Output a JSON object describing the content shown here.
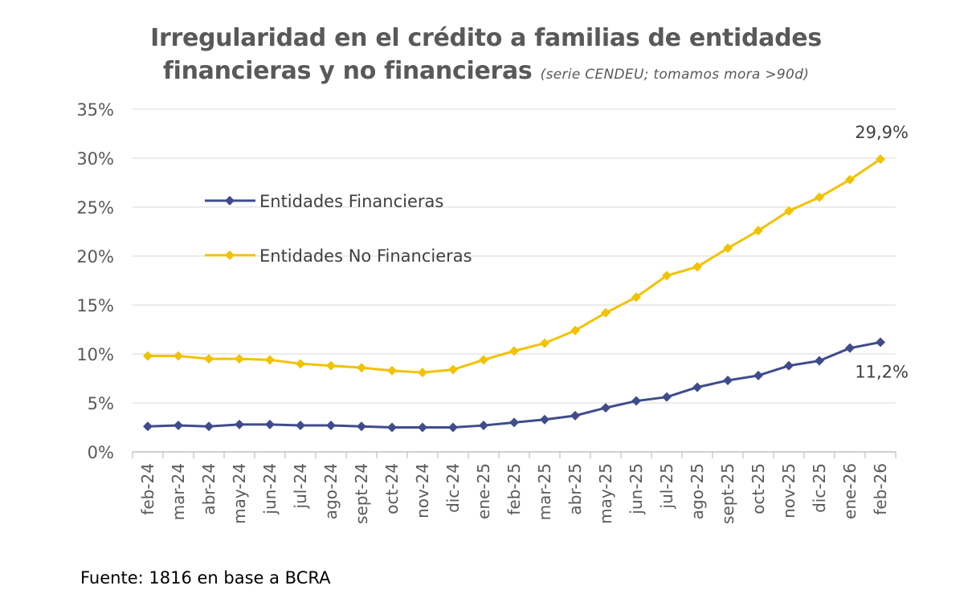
{
  "chart_data": {
    "type": "line",
    "title": "Irregularidad en el crédito a familias de entidades",
    "title_line2": "financieras y no financieras",
    "subtitle": "(serie CENDEU; tomamos mora >90d)",
    "source": "Fuente: 1816 en base a BCRA",
    "categories": [
      "feb-24",
      "mar-24",
      "abr-24",
      "may-24",
      "jun-24",
      "jul-24",
      "ago-24",
      "sept-24",
      "oct-24",
      "nov-24",
      "dic-24",
      "ene-25",
      "feb-25",
      "mar-25",
      "abr-25",
      "may-25",
      "jun-25",
      "jul-25",
      "ago-25",
      "sept-25",
      "oct-25",
      "nov-25",
      "dic-25",
      "ene-26",
      "feb-26"
    ],
    "series": [
      {
        "name": "Entidades Financieras",
        "color": "#3F4C8C",
        "values": [
          2.6,
          2.7,
          2.6,
          2.8,
          2.8,
          2.7,
          2.7,
          2.6,
          2.5,
          2.5,
          2.5,
          2.7,
          3.0,
          3.3,
          3.7,
          4.5,
          5.2,
          5.6,
          6.6,
          7.3,
          7.8,
          8.8,
          9.3,
          10.6,
          11.2
        ]
      },
      {
        "name": "Entidades No Financieras",
        "color": "#F2C200",
        "values": [
          9.8,
          9.8,
          9.5,
          9.5,
          9.4,
          9.0,
          8.8,
          8.6,
          8.3,
          8.1,
          8.4,
          9.4,
          10.3,
          11.1,
          12.4,
          14.2,
          15.8,
          18.0,
          18.9,
          20.8,
          22.6,
          24.6,
          26.0,
          27.8,
          29.9
        ]
      }
    ],
    "data_labels": [
      {
        "series": 1,
        "index": 24,
        "text": "29,9%"
      },
      {
        "series": 0,
        "index": 24,
        "text": "11,2%"
      }
    ],
    "yticks": [
      "0%",
      "5%",
      "10%",
      "15%",
      "20%",
      "25%",
      "30%",
      "35%"
    ],
    "ylim": [
      0,
      35
    ],
    "grid": true,
    "legend_position": "upper-left inside plot"
  }
}
